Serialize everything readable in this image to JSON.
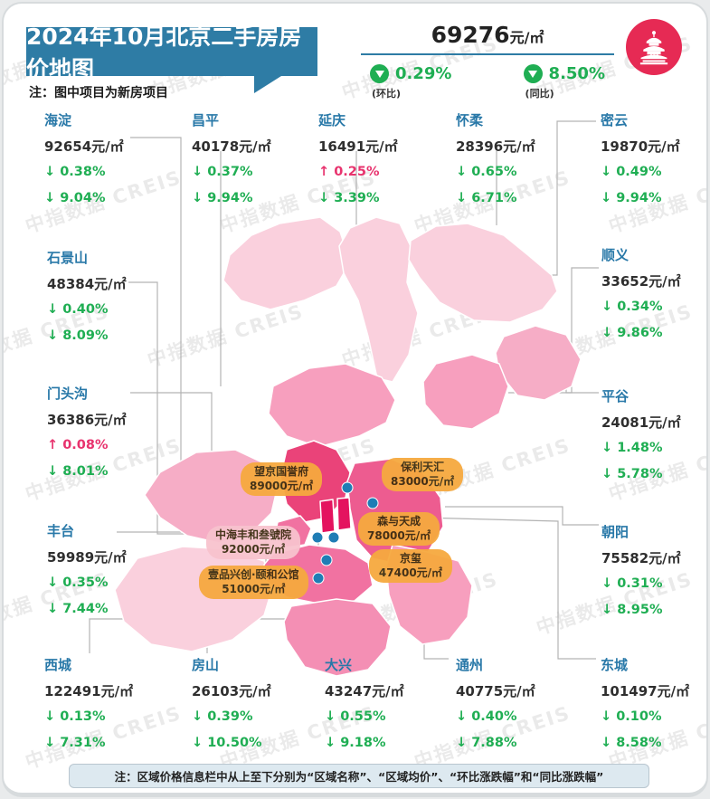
{
  "header": {
    "title": "2024年10月北京二手房房价地图",
    "note": "注：图中项目为新房项目",
    "avg_price": "69276",
    "avg_unit": "元/㎡",
    "mom": {
      "value": "0.29%",
      "label": "(环比)",
      "direction": "down"
    },
    "yoy": {
      "value": "8.50%",
      "label": "(同比)",
      "direction": "down"
    },
    "logo": "temple-of-heaven"
  },
  "districts": [
    {
      "name": "海淀",
      "price": "92654元/㎡",
      "mom": "↓ 0.38%",
      "mom_dir": "down",
      "yoy": "↓ 9.04%",
      "yoy_dir": "down"
    },
    {
      "name": "昌平",
      "price": "40178元/㎡",
      "mom": "↓ 0.37%",
      "mom_dir": "down",
      "yoy": "↓ 9.94%",
      "yoy_dir": "down"
    },
    {
      "name": "延庆",
      "price": "16491元/㎡",
      "mom": "↑ 0.25%",
      "mom_dir": "up",
      "yoy": "↓ 3.39%",
      "yoy_dir": "down"
    },
    {
      "name": "怀柔",
      "price": "28396元/㎡",
      "mom": "↓ 0.65%",
      "mom_dir": "down",
      "yoy": "↓ 6.71%",
      "yoy_dir": "down"
    },
    {
      "name": "密云",
      "price": "19870元/㎡",
      "mom": "↓ 0.49%",
      "mom_dir": "down",
      "yoy": "↓ 9.94%",
      "yoy_dir": "down"
    },
    {
      "name": "石景山",
      "price": "48384元/㎡",
      "mom": "↓ 0.40%",
      "mom_dir": "down",
      "yoy": "↓ 8.09%",
      "yoy_dir": "down"
    },
    {
      "name": "门头沟",
      "price": "36386元/㎡",
      "mom": "↑ 0.08%",
      "mom_dir": "up",
      "yoy": "↓ 8.01%",
      "yoy_dir": "down"
    },
    {
      "name": "丰台",
      "price": "59989元/㎡",
      "mom": "↓ 0.35%",
      "mom_dir": "down",
      "yoy": "↓ 7.44%",
      "yoy_dir": "down"
    },
    {
      "name": "顺义",
      "price": "33652元/㎡",
      "mom": "↓ 0.34%",
      "mom_dir": "down",
      "yoy": "↓ 9.86%",
      "yoy_dir": "down"
    },
    {
      "name": "平谷",
      "price": "24081元/㎡",
      "mom": "↓ 1.48%",
      "mom_dir": "down",
      "yoy": "↓ 5.78%",
      "yoy_dir": "down"
    },
    {
      "name": "朝阳",
      "price": "75582元/㎡",
      "mom": "↓ 0.31%",
      "mom_dir": "down",
      "yoy": "↓ 8.95%",
      "yoy_dir": "down"
    },
    {
      "name": "西城",
      "price": "122491元/㎡",
      "mom": "↓ 0.13%",
      "mom_dir": "down",
      "yoy": "↓ 7.31%",
      "yoy_dir": "down"
    },
    {
      "name": "房山",
      "price": "26103元/㎡",
      "mom": "↓ 0.39%",
      "mom_dir": "down",
      "yoy": "↓ 10.50%",
      "yoy_dir": "down"
    },
    {
      "name": "大兴",
      "price": "43247元/㎡",
      "mom": "↓ 0.55%",
      "mom_dir": "down",
      "yoy": "↓ 9.18%",
      "yoy_dir": "down"
    },
    {
      "name": "通州",
      "price": "40775元/㎡",
      "mom": "↓ 0.40%",
      "mom_dir": "down",
      "yoy": "↓ 7.88%",
      "yoy_dir": "down"
    },
    {
      "name": "东城",
      "price": "101497元/㎡",
      "mom": "↓ 0.10%",
      "mom_dir": "down",
      "yoy": "↓ 8.58%",
      "yoy_dir": "down"
    }
  ],
  "projects": [
    {
      "name": "望京国誉府",
      "price": "89000元/㎡"
    },
    {
      "name": "保利天汇",
      "price": "83000元/㎡"
    },
    {
      "name": "中海丰和叁號院",
      "price": "92000元/㎡"
    },
    {
      "name": "森与天成",
      "price": "78000元/㎡"
    },
    {
      "name": "京玺",
      "price": "47400元/㎡"
    },
    {
      "name": "壹品兴创·颐和公馆",
      "price": "51000元/㎡"
    }
  ],
  "footer_note": "注：区域价格信息栏中从上至下分别为“区域名称”、“区域均价”、“环比涨跌幅”和“同比涨跌幅”",
  "watermark": "中指数据 CREIS",
  "colors": {
    "banner_blue": "#2e7ca5",
    "district_name_blue": "#2878a8",
    "green_down": "#1fae53",
    "pink_up": "#e8336e",
    "logo_red": "#e62a54",
    "pill_orange": "#f6a93f",
    "pill_pink": "#f8c3ce",
    "project_dot_blue": "#1f7db5",
    "map_level_lightest": "#fad0dd",
    "map_level_light": "#f6adc6",
    "map_level_medium": "#f79fbe",
    "map_level_dark": "#f172a1",
    "map_level_bright": "#ea4379",
    "map_level_hot": "#e4135f"
  }
}
